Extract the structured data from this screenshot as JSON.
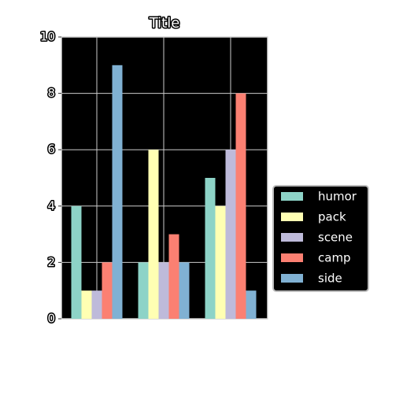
{
  "chart_data": {
    "type": "bar",
    "title": "Title",
    "categories": [
      null,
      null,
      null
    ],
    "series": [
      {
        "name": "humor",
        "color": "#8dd3c7",
        "values": [
          4,
          2,
          5
        ]
      },
      {
        "name": "pack",
        "color": "#ffffb3",
        "values": [
          1,
          6,
          4
        ]
      },
      {
        "name": "scene",
        "color": "#bebada",
        "values": [
          1,
          2,
          6
        ]
      },
      {
        "name": "camp",
        "color": "#fb8072",
        "values": [
          2,
          3,
          8
        ]
      },
      {
        "name": "side",
        "color": "#80b1d3",
        "values": [
          9,
          2,
          1
        ]
      }
    ],
    "ylim": [
      0,
      10
    ],
    "yticks": [
      0,
      2,
      4,
      6,
      8,
      10
    ],
    "grid": true,
    "legend": "right"
  }
}
